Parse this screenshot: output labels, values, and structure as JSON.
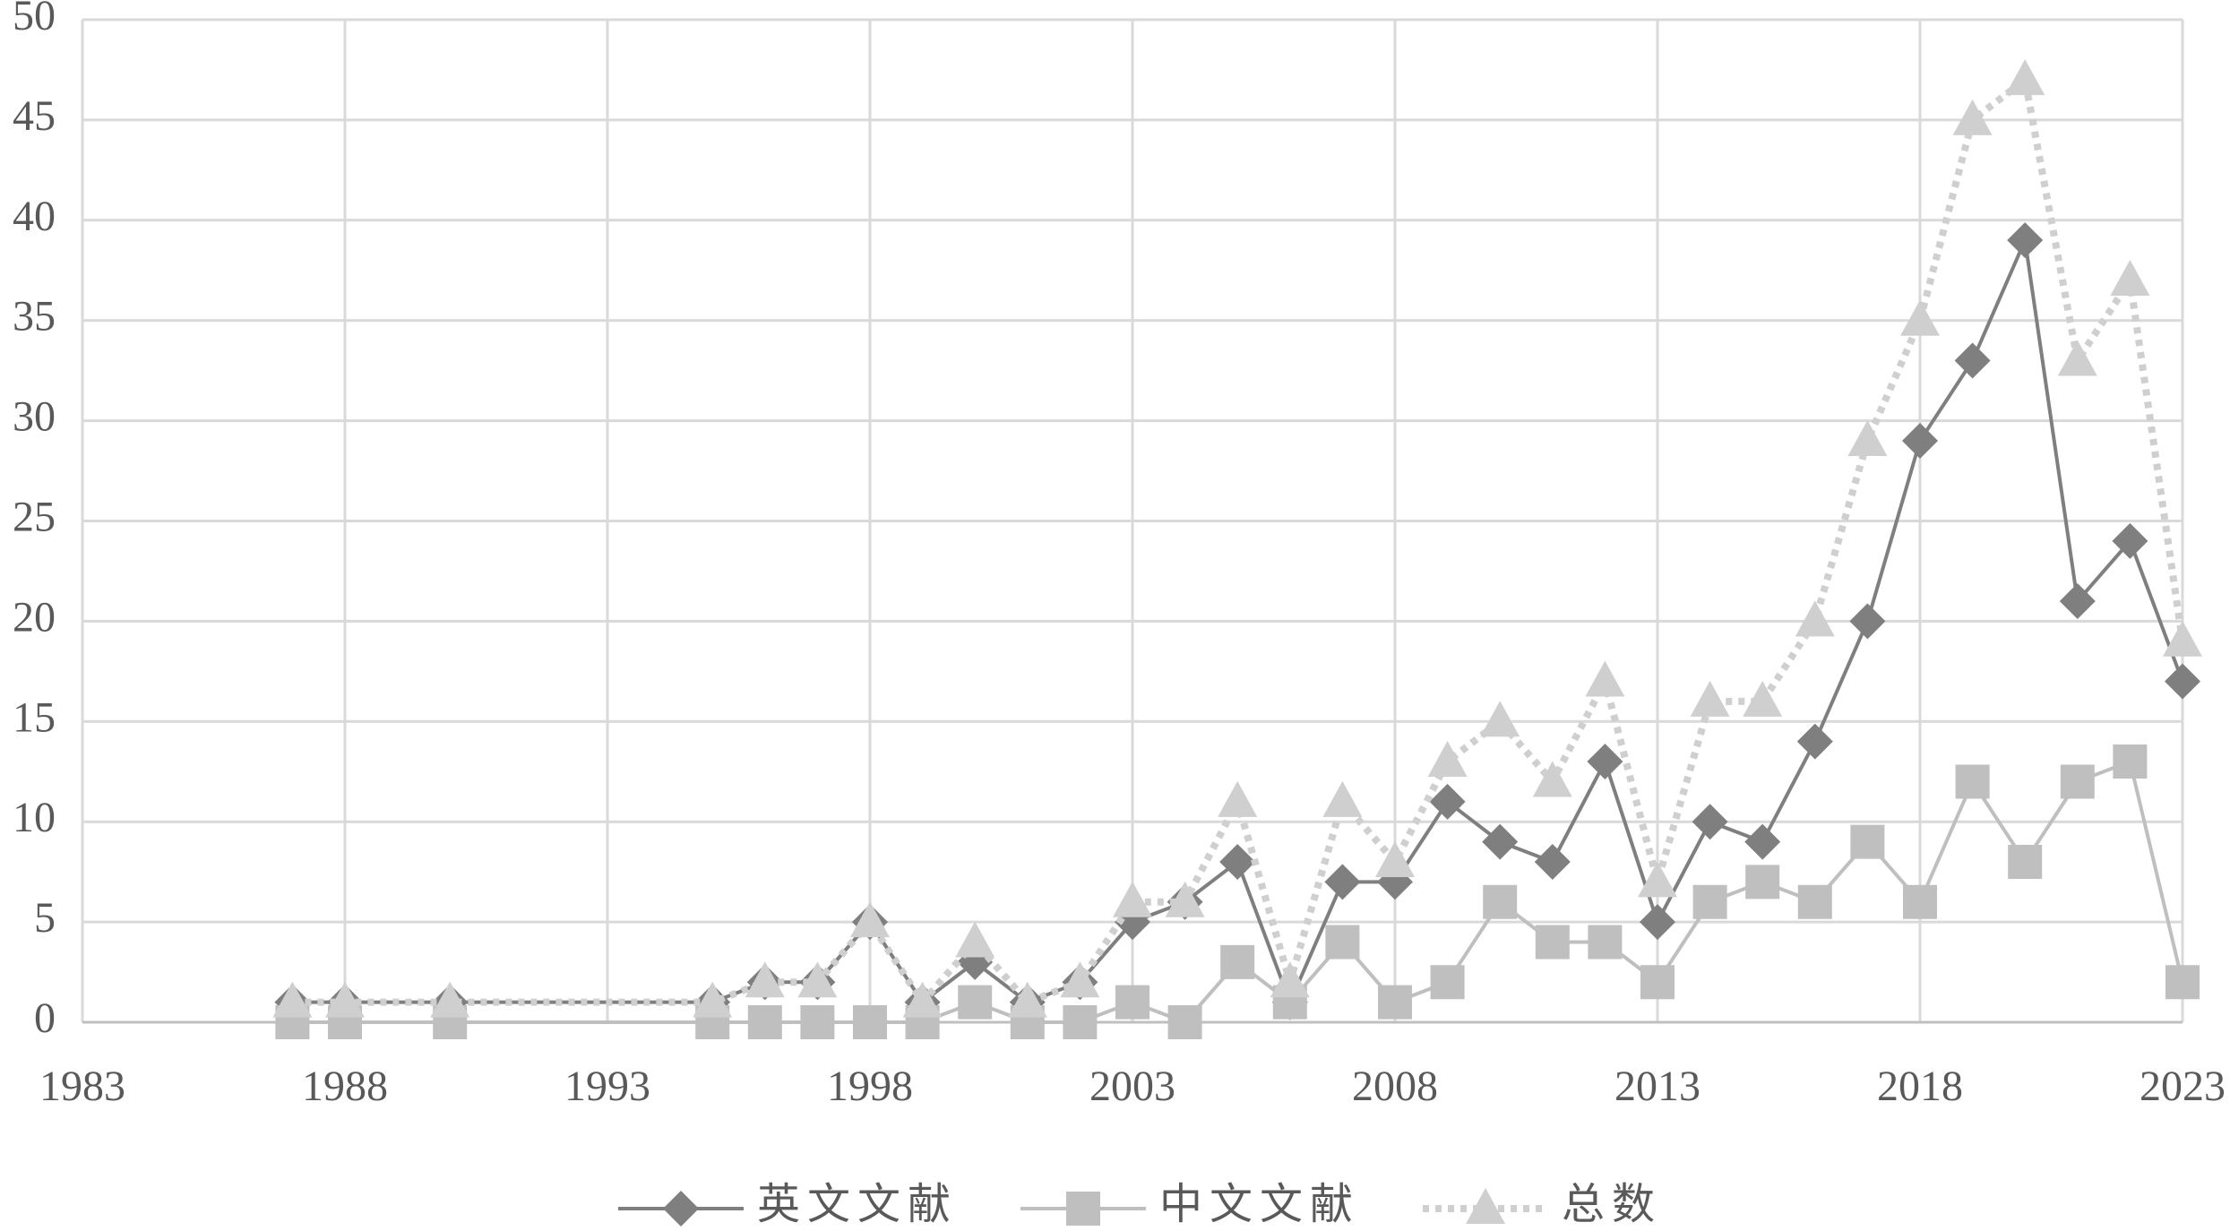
{
  "chart_data": {
    "type": "line",
    "x": [
      1987,
      1988,
      1990,
      1995,
      1996,
      1997,
      1998,
      1999,
      2000,
      2001,
      2002,
      2003,
      2004,
      2005,
      2006,
      2007,
      2008,
      2009,
      2010,
      2011,
      2012,
      2013,
      2014,
      2015,
      2016,
      2017,
      2018,
      2019,
      2020,
      2021,
      2022,
      2023
    ],
    "series": [
      {
        "name": "英文文献",
        "color": "#7f7f7f",
        "marker": "diamond",
        "dash": "solid",
        "values": [
          1,
          1,
          1,
          1,
          2,
          2,
          5,
          1,
          3,
          1,
          2,
          5,
          6,
          8,
          1,
          7,
          7,
          11,
          9,
          8,
          13,
          5,
          10,
          9,
          14,
          20,
          29,
          33,
          39,
          21,
          24,
          17
        ]
      },
      {
        "name": "中文文献",
        "color": "#bfbfbf",
        "marker": "square",
        "dash": "solid",
        "values": [
          0,
          0,
          0,
          0,
          0,
          0,
          0,
          0,
          1,
          0,
          0,
          1,
          0,
          3,
          1,
          4,
          1,
          2,
          6,
          4,
          4,
          2,
          6,
          7,
          6,
          9,
          6,
          12,
          8,
          12,
          13,
          2
        ]
      },
      {
        "name": "总数",
        "color": "#cfcfcf",
        "marker": "triangle",
        "dash": "dotted",
        "values": [
          1,
          1,
          1,
          1,
          2,
          2,
          5,
          1,
          4,
          1,
          2,
          6,
          6,
          11,
          2,
          11,
          8,
          13,
          15,
          12,
          17,
          7,
          16,
          16,
          20,
          29,
          35,
          45,
          47,
          33,
          37,
          19
        ]
      }
    ],
    "xlim": [
      1983,
      2023
    ],
    "xticks": [
      1983,
      1988,
      1993,
      1998,
      2003,
      2008,
      2013,
      2018,
      2023
    ],
    "ylim": [
      0,
      50
    ],
    "yticks": [
      0,
      5,
      10,
      15,
      20,
      25,
      30,
      35,
      40,
      45,
      50
    ],
    "grid": true,
    "legend": "bottom"
  }
}
